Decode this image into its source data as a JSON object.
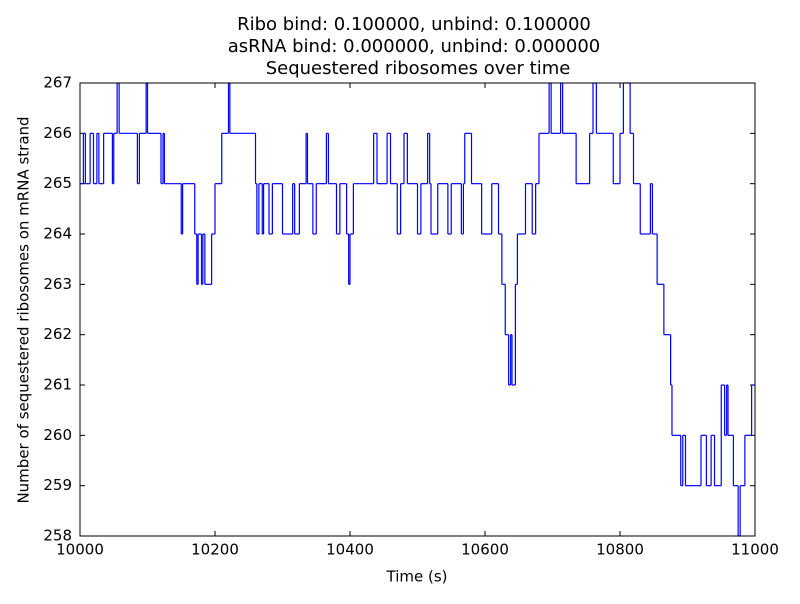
{
  "chart_data": {
    "type": "step",
    "title": [
      "Ribo bind: 0.100000, unbind: 0.100000",
      "asRNA bind: 0.000000, unbind: 0.000000",
      "Sequestered ribosomes over time"
    ],
    "x_label": "Time (s)",
    "y_label": "Number of sequestered ribosomes on mRNA strand",
    "xlim": [
      10000,
      11000
    ],
    "ylim": [
      258,
      267
    ],
    "xticks": [
      10000,
      10200,
      10400,
      10600,
      10800,
      11000
    ],
    "yticks": [
      258,
      259,
      260,
      261,
      262,
      263,
      264,
      265,
      266,
      267
    ],
    "color": "#0000ff",
    "x": [
      10000,
      10005,
      10008,
      10015,
      10020,
      10025,
      10028,
      10035,
      10048,
      10050,
      10055,
      10058,
      10085,
      10088,
      10098,
      10100,
      10120,
      10123,
      10125,
      10150,
      10152,
      10170,
      10173,
      10175,
      10180,
      10182,
      10185,
      10195,
      10200,
      10210,
      10220,
      10222,
      10260,
      10262,
      10265,
      10270,
      10272,
      10280,
      10285,
      10300,
      10315,
      10318,
      10325,
      10335,
      10337,
      10345,
      10350,
      10365,
      10368,
      10380,
      10385,
      10395,
      10398,
      10400,
      10405,
      10435,
      10440,
      10455,
      10460,
      10470,
      10475,
      10480,
      10485,
      10500,
      10505,
      10515,
      10518,
      10520,
      10530,
      10545,
      10550,
      10565,
      10568,
      10570,
      10580,
      10595,
      10610,
      10620,
      10625,
      10630,
      10635,
      10638,
      10640,
      10645,
      10648,
      10660,
      10670,
      10675,
      10680,
      10695,
      10698,
      10712,
      10715,
      10735,
      10755,
      10760,
      10765,
      10790,
      10800,
      10805,
      10815,
      10820,
      10830,
      10845,
      10848,
      10855,
      10865,
      10875,
      10877,
      10890,
      10893,
      10897,
      10920,
      10928,
      10935,
      10940,
      10950,
      10955,
      10958,
      10960,
      10968,
      10975,
      10978,
      10985,
      10995,
      11000
    ],
    "values": [
      265,
      266,
      265,
      266,
      265,
      266,
      265,
      266,
      265,
      266,
      267,
      266,
      265,
      266,
      267,
      266,
      265,
      266,
      265,
      264,
      265,
      264,
      263,
      264,
      263,
      264,
      263,
      264,
      265,
      266,
      267,
      266,
      265,
      264,
      265,
      264,
      265,
      264,
      265,
      264,
      265,
      264,
      265,
      266,
      265,
      264,
      265,
      266,
      265,
      264,
      265,
      264,
      263,
      264,
      265,
      266,
      265,
      266,
      265,
      264,
      265,
      266,
      265,
      264,
      265,
      266,
      265,
      264,
      265,
      264,
      265,
      264,
      265,
      266,
      265,
      264,
      265,
      264,
      263,
      262,
      261,
      262,
      261,
      263,
      264,
      265,
      264,
      265,
      266,
      267,
      266,
      267,
      266,
      265,
      266,
      267,
      266,
      265,
      266,
      267,
      266,
      265,
      264,
      265,
      264,
      263,
      262,
      261,
      260,
      259,
      260,
      259,
      260,
      259,
      260,
      259,
      261,
      260,
      261,
      260,
      259,
      258,
      259,
      260,
      261,
      261
    ]
  }
}
